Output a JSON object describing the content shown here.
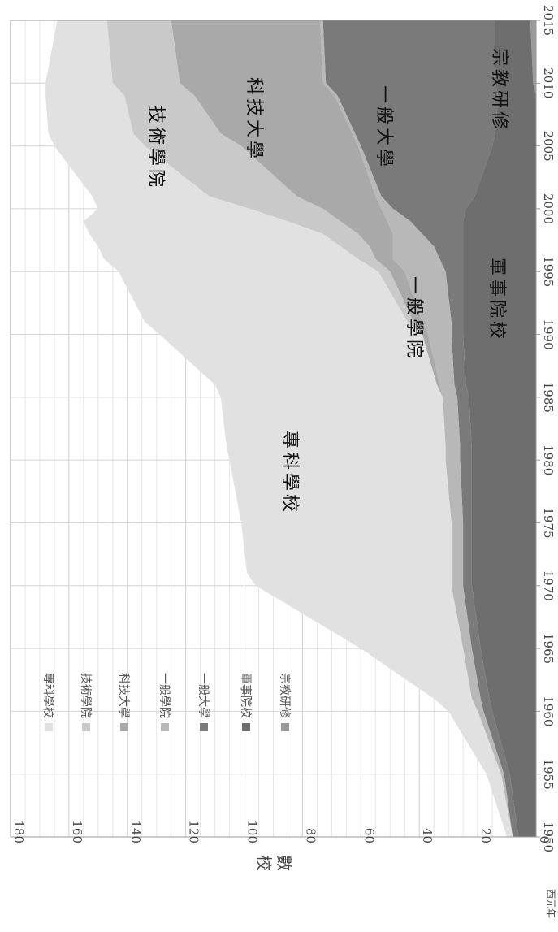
{
  "chart_data": {
    "type": "area",
    "stacked": true,
    "x_values": [
      1950,
      1955,
      1960,
      1961,
      1965,
      1970,
      1971,
      1975,
      1980,
      1981,
      1985,
      1986,
      1990,
      1991,
      1995,
      1996,
      1997,
      1998,
      1999,
      2000,
      2001,
      2005,
      2006,
      2009,
      2010,
      2015
    ],
    "x_ticks": [
      "1950",
      "1955",
      "1960",
      "1965",
      "1970",
      "1975",
      "1980",
      "1985",
      "1990",
      "1995",
      "2000",
      "2005",
      "2010",
      "2015"
    ],
    "y_ticks": [
      "0",
      "20",
      "40",
      "60",
      "80",
      "100",
      "120",
      "140",
      "160",
      "180"
    ],
    "ylim": [
      0,
      180
    ],
    "ylabel": "校數",
    "xunit": "西元年",
    "grid": true,
    "legend_position": "right",
    "series": [
      {
        "name": "宗教研修",
        "color": "#9a9a9a",
        "values": [
          0,
          0,
          0,
          0,
          0,
          0,
          0,
          0,
          0,
          0,
          0,
          0,
          0,
          0,
          0,
          0,
          0,
          0,
          0,
          0,
          0,
          0,
          0,
          0,
          1,
          2
        ]
      },
      {
        "name": "軍事院校",
        "color": "#6e6e6e",
        "values": [
          6,
          9,
          15,
          16,
          19,
          22,
          22,
          22,
          22,
          22,
          23,
          24,
          25,
          25,
          25,
          25,
          25,
          25,
          25,
          24,
          21,
          15,
          14,
          13,
          13,
          12
        ]
      },
      {
        "name": "一般大學",
        "color": "#7a7a7a",
        "values": [
          2,
          2,
          3,
          3,
          3,
          3,
          3,
          3,
          4,
          4,
          4,
          4,
          4,
          4,
          6,
          8,
          10,
          14,
          18,
          25,
          32,
          45,
          48,
          55,
          58,
          59
        ]
      },
      {
        "name": "一般學院",
        "color": "#b8b8b8",
        "values": [
          0,
          1,
          2,
          3,
          3,
          4,
          4,
          4,
          5,
          5,
          5,
          5,
          8,
          10,
          14,
          16,
          14,
          10,
          8,
          4,
          2,
          1,
          1,
          1,
          1,
          1
        ]
      },
      {
        "name": "科技大學",
        "color": "#a9a9a9",
        "values": [
          0,
          0,
          0,
          0,
          0,
          0,
          0,
          0,
          0,
          0,
          0,
          1,
          2,
          3,
          5,
          6,
          8,
          12,
          16,
          20,
          27,
          40,
          45,
          48,
          49,
          51
        ]
      },
      {
        "name": "技術學院",
        "color": "#c9c9c9",
        "values": [
          0,
          0,
          0,
          0,
          0,
          0,
          0,
          0,
          0,
          0,
          0,
          0,
          0,
          2,
          4,
          6,
          10,
          12,
          18,
          25,
          30,
          33,
          30,
          24,
          23,
          22
        ]
      },
      {
        "name": "專科學校",
        "color": "#e1e1e1",
        "values": [
          2,
          5,
          10,
          13,
          35,
          67,
          70,
          72,
          74,
          75,
          76,
          76,
          90,
          90,
          89,
          87,
          83,
          80,
          70,
          52,
          40,
          31,
          29,
          27,
          23,
          17
        ]
      }
    ],
    "in_chart_labels": [
      "專科學校",
      "技術學院",
      "科技大學",
      "一般學院",
      "一般大學",
      "軍事院校",
      "宗教研修"
    ]
  }
}
